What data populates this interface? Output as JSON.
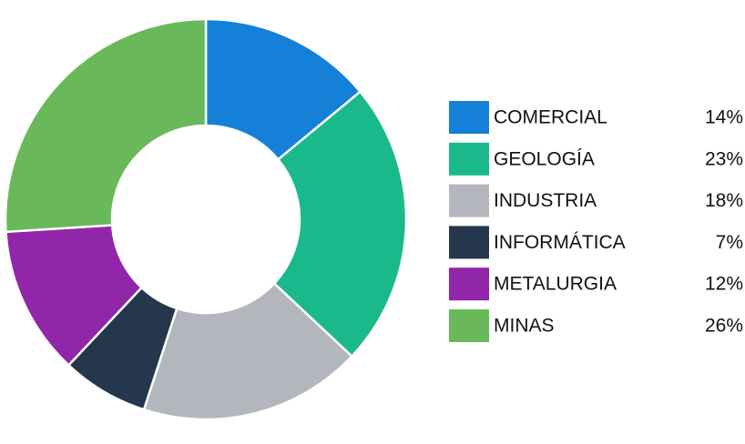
{
  "chart_data": {
    "type": "donut",
    "categories": [
      "COMERCIAL",
      "GEOLOGÍA",
      "INDUSTRIA",
      "INFORMÁTICA",
      "METALURGIA",
      "MINAS"
    ],
    "values": [
      14,
      23,
      18,
      7,
      12,
      26
    ],
    "value_labels": [
      "14%",
      "23%",
      "18%",
      "7%",
      "12%",
      "26%"
    ],
    "colors": [
      "#1580d8",
      "#1ab98c",
      "#b3b7bd",
      "#24374c",
      "#9126a9",
      "#69b95b"
    ],
    "legend": "right"
  }
}
